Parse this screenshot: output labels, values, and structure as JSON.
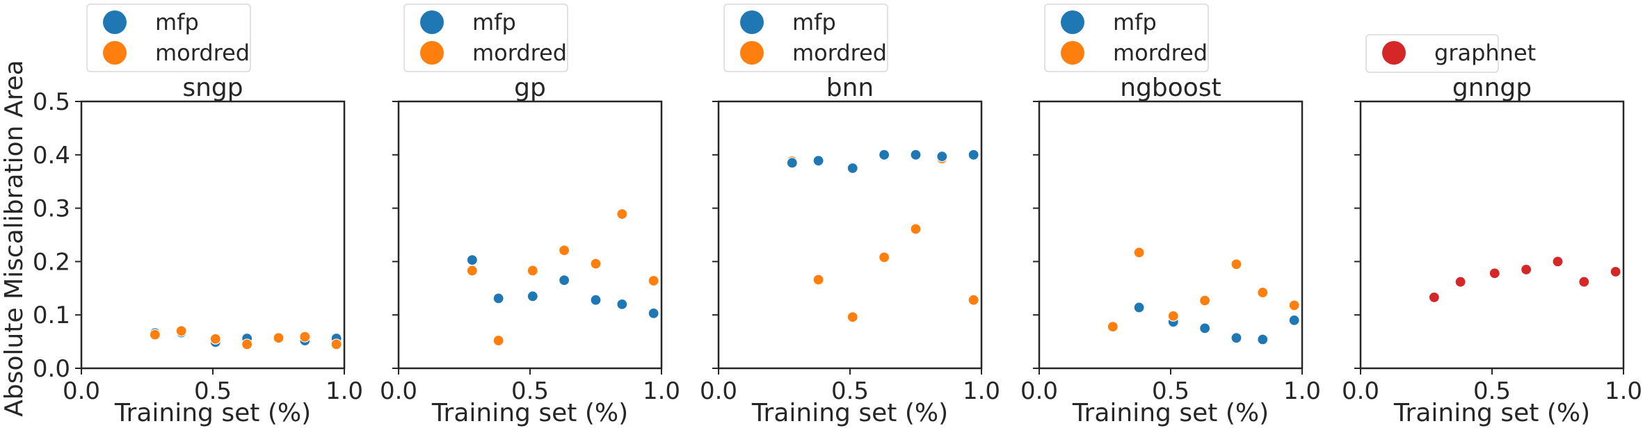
{
  "figure": {
    "ylabel": "Absolute Miscalibration Area",
    "xlabel": "Training set (%)"
  },
  "colors": {
    "mfp": "#1f77b4",
    "mordred": "#ff7f0e",
    "graphnet": "#d62728"
  },
  "chart_data": [
    {
      "type": "scatter",
      "title": "sngp",
      "xlabel": "Training set (%)",
      "ylabel": "Absolute Miscalibration Area",
      "xlim": [
        0.0,
        1.0
      ],
      "ylim": [
        0.0,
        0.5
      ],
      "xticks": [
        "0.0",
        "0.5",
        "1.0"
      ],
      "yticks": [
        "0.0",
        "0.1",
        "0.2",
        "0.3",
        "0.4",
        "0.5"
      ],
      "legend": [
        "mfp",
        "mordred"
      ],
      "series": [
        {
          "name": "mfp",
          "color": "#1f77b4",
          "x": [
            0.28,
            0.38,
            0.51,
            0.63,
            0.75,
            0.85,
            0.97
          ],
          "y": [
            0.066,
            0.067,
            0.049,
            0.056,
            0.057,
            0.052,
            0.056
          ]
        },
        {
          "name": "mordred",
          "color": "#ff7f0e",
          "x": [
            0.28,
            0.38,
            0.51,
            0.63,
            0.75,
            0.85,
            0.97
          ],
          "y": [
            0.063,
            0.07,
            0.055,
            0.045,
            0.057,
            0.059,
            0.045
          ]
        }
      ]
    },
    {
      "type": "scatter",
      "title": "gp",
      "xlabel": "Training set (%)",
      "xlim": [
        0.0,
        1.0
      ],
      "ylim": [
        0.0,
        0.5
      ],
      "xticks": [
        "0.0",
        "0.5",
        "1.0"
      ],
      "legend": [
        "mfp",
        "mordred"
      ],
      "series": [
        {
          "name": "mfp",
          "color": "#1f77b4",
          "x": [
            0.28,
            0.38,
            0.51,
            0.63,
            0.75,
            0.85,
            0.97
          ],
          "y": [
            0.203,
            0.131,
            0.135,
            0.165,
            0.128,
            0.12,
            0.103
          ]
        },
        {
          "name": "mordred",
          "color": "#ff7f0e",
          "x": [
            0.28,
            0.38,
            0.51,
            0.63,
            0.75,
            0.85,
            0.97
          ],
          "y": [
            0.183,
            0.052,
            0.183,
            0.221,
            0.196,
            0.289,
            0.164
          ]
        }
      ]
    },
    {
      "type": "scatter",
      "title": "bnn",
      "xlabel": "Training set (%)",
      "xlim": [
        0.0,
        1.0
      ],
      "ylim": [
        0.0,
        0.5
      ],
      "xticks": [
        "0.0",
        "0.5",
        "1.0"
      ],
      "legend": [
        "mfp",
        "mordred"
      ],
      "series": [
        {
          "name": "mordred",
          "color": "#ff7f0e",
          "x": [
            0.28,
            0.38,
            0.51,
            0.63,
            0.75,
            0.85,
            0.97
          ],
          "y": [
            0.388,
            0.166,
            0.096,
            0.208,
            0.261,
            0.393,
            0.128
          ]
        },
        {
          "name": "mfp",
          "color": "#1f77b4",
          "x": [
            0.28,
            0.38,
            0.51,
            0.63,
            0.75,
            0.85,
            0.97
          ],
          "y": [
            0.385,
            0.389,
            0.375,
            0.4,
            0.4,
            0.397,
            0.4
          ]
        }
      ]
    },
    {
      "type": "scatter",
      "title": "ngboost",
      "xlabel": "Training set (%)",
      "xlim": [
        0.0,
        1.0
      ],
      "ylim": [
        0.0,
        0.5
      ],
      "xticks": [
        "0.0",
        "0.5",
        "1.0"
      ],
      "legend": [
        "mfp",
        "mordred"
      ],
      "series": [
        {
          "name": "mfp",
          "color": "#1f77b4",
          "x": [
            0.38,
            0.51,
            0.63,
            0.75,
            0.85,
            0.97
          ],
          "y": [
            0.114,
            0.087,
            0.075,
            0.057,
            0.054,
            0.09
          ]
        },
        {
          "name": "mordred",
          "color": "#ff7f0e",
          "x": [
            0.28,
            0.38,
            0.51,
            0.63,
            0.75,
            0.85,
            0.97
          ],
          "y": [
            0.078,
            0.217,
            0.098,
            0.127,
            0.195,
            0.142,
            0.118
          ]
        }
      ]
    },
    {
      "type": "scatter",
      "title": "gnngp",
      "xlabel": "Training set (%)",
      "xlim": [
        0.0,
        1.0
      ],
      "ylim": [
        0.0,
        0.5
      ],
      "xticks": [
        "0.0",
        "0.5",
        "1.0"
      ],
      "legend": [
        "graphnet"
      ],
      "series": [
        {
          "name": "graphnet",
          "color": "#d62728",
          "x": [
            0.28,
            0.38,
            0.51,
            0.63,
            0.75,
            0.85,
            0.97
          ],
          "y": [
            0.133,
            0.162,
            0.178,
            0.185,
            0.2,
            0.162,
            0.181
          ]
        }
      ]
    }
  ]
}
